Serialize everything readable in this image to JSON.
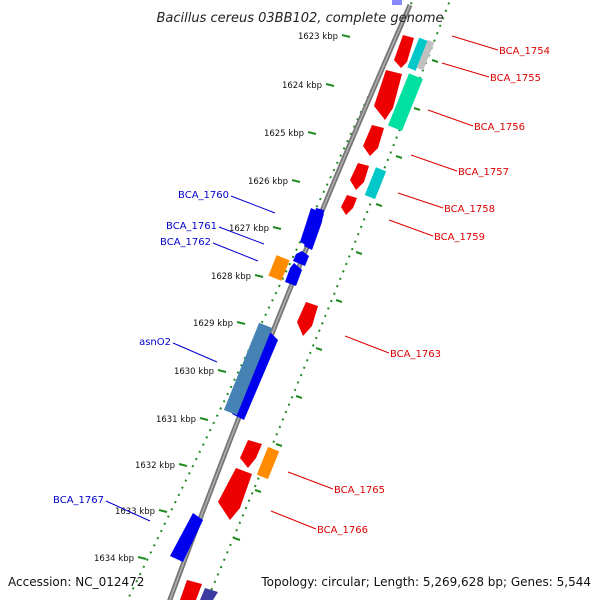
{
  "title": "Bacillus cereus 03BB102, complete genome",
  "footer": {
    "accession": "Accession: NC_012472",
    "topology": "Topology: circular; Length: 5,269,628 bp; Genes: 5,544"
  },
  "kbp_ticks": [
    "1623 kbp",
    "1624 kbp",
    "1625 kbp",
    "1626 kbp",
    "1627 kbp",
    "1628 kbp",
    "1629 kbp",
    "1630 kbp",
    "1631 kbp",
    "1632 kbp",
    "1633 kbp",
    "1634 kbp"
  ],
  "labels_left": [
    "BCA_1760",
    "BCA_1761",
    "BCA_1762",
    "asnO2",
    "BCA_1767"
  ],
  "labels_right": [
    "BCA_1754",
    "BCA_1755",
    "BCA_1756",
    "BCA_1757",
    "BCA_1758",
    "BCA_1759",
    "BCA_1763",
    "BCA_1765",
    "BCA_1766"
  ],
  "colors": {
    "backbone": "#808080",
    "kbp_ring": "#228b22",
    "left_label": "#0000cc",
    "right_label": "#dd0000",
    "gene_red": "#ee0000",
    "gene_blue": "#0000ee",
    "gene_orange": "#ff8c00",
    "gene_cyan": "#00c8c8",
    "gene_teal": "#00e0a0",
    "gene_steel": "#4682b4"
  }
}
